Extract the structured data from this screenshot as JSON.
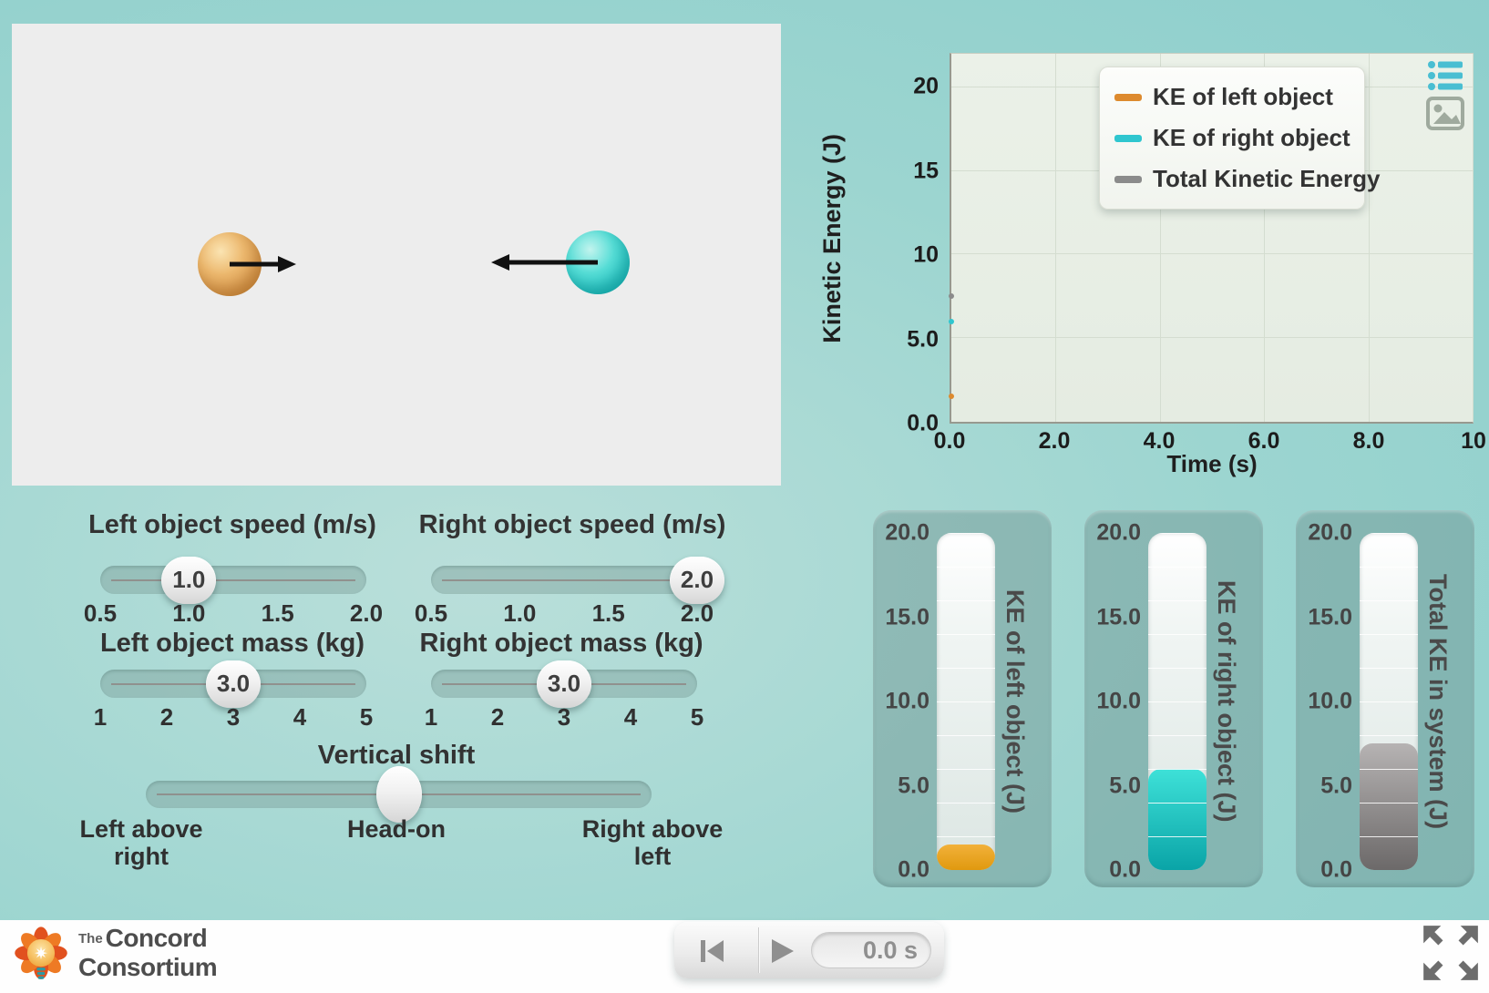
{
  "simulation": {
    "left_object": {
      "color": "#dfa055",
      "direction": "right"
    },
    "right_object": {
      "color": "#35cfcf",
      "direction": "left"
    }
  },
  "chart_data": {
    "type": "scatter",
    "title": "",
    "xlabel": "Time (s)",
    "ylabel": "Kinetic Energy (J)",
    "xlim": [
      0,
      10
    ],
    "ylim": [
      0,
      20
    ],
    "y_scale_max": 22,
    "grid": true,
    "legend_position": "top-right",
    "x_tick_values": [
      0,
      2,
      4,
      6,
      8,
      10
    ],
    "x_ticks": [
      "0.0",
      "2.0",
      "4.0",
      "6.0",
      "8.0",
      "10"
    ],
    "y_tick_values": [
      20,
      15,
      10,
      5,
      0
    ],
    "y_ticks": [
      "20",
      "15",
      "10",
      "5.0",
      "0.0"
    ],
    "x_gridlines": [
      2,
      4,
      6,
      8,
      10
    ],
    "y_gridlines": [
      5,
      10,
      15,
      20
    ],
    "series": [
      {
        "name": "KE of left object",
        "color": "#dd8a2e",
        "x": [
          0
        ],
        "values": [
          1.5
        ]
      },
      {
        "name": "KE of right object",
        "color": "#2fc6cf",
        "x": [
          0
        ],
        "values": [
          6.0
        ]
      },
      {
        "name": "Total Kinetic Energy",
        "color": "#8b8b8b",
        "x": [
          0
        ],
        "values": [
          7.5
        ]
      }
    ]
  },
  "chart_icons": {
    "list": "list-icon",
    "snapshot": "image-icon"
  },
  "sliders": [
    {
      "title": "Left object speed (m/s)",
      "min": 0.5,
      "max": 2.0,
      "value": 1.0,
      "display": "1.0",
      "ticks": [
        "0.5",
        "1.0",
        "1.5",
        "2.0"
      ]
    },
    {
      "title": "Right object speed (m/s)",
      "min": 0.5,
      "max": 2.0,
      "value": 2.0,
      "display": "2.0",
      "ticks": [
        "0.5",
        "1.0",
        "1.5",
        "2.0"
      ]
    },
    {
      "title": "Left object mass (kg)",
      "min": 1,
      "max": 5,
      "value": 3.0,
      "display": "3.0",
      "ticks": [
        "1",
        "2",
        "3",
        "4",
        "5"
      ]
    },
    {
      "title": "Right object mass (kg)",
      "min": 1,
      "max": 5,
      "value": 3.0,
      "display": "3.0",
      "ticks": [
        "1",
        "2",
        "3",
        "4",
        "5"
      ]
    }
  ],
  "vertical_shift": {
    "title": "Vertical shift",
    "min": -1,
    "max": 1,
    "value": 0,
    "display": "",
    "labels": [
      "Left above\nright",
      "Head-on",
      "Right above\nleft"
    ]
  },
  "gauges": [
    {
      "label": "KE of left object (J)",
      "min": 0,
      "max": 20,
      "value": 1.5,
      "fill_top": "#f2b13a",
      "fill_bottom": "#e0990f",
      "tick_values": [
        20,
        15,
        10,
        5,
        0
      ],
      "ticks": [
        "20.0",
        "15.0",
        "10.0",
        "5.0",
        "0.0"
      ]
    },
    {
      "label": "KE of right object (J)",
      "min": 0,
      "max": 20,
      "value": 6.0,
      "fill_top": "#3ee1d8",
      "fill_bottom": "#0aa4a7",
      "tick_values": [
        20,
        15,
        10,
        5,
        0
      ],
      "ticks": [
        "20.0",
        "15.0",
        "10.0",
        "5.0",
        "0.0"
      ]
    },
    {
      "label": "Total KE in system (J)",
      "min": 0,
      "max": 20,
      "value": 7.5,
      "fill_top": "#b6b3b3",
      "fill_bottom": "#6c6969",
      "tick_values": [
        20,
        15,
        10,
        5,
        0
      ],
      "ticks": [
        "20.0",
        "15.0",
        "10.0",
        "5.0",
        "0.0"
      ]
    }
  ],
  "footer": {
    "logo": {
      "prefix": "The",
      "line1": "Concord",
      "line2": "Consortium"
    },
    "controls": {
      "reset_icon": "skip-to-start-icon",
      "play_icon": "play-icon",
      "time_display": "0.0 s"
    },
    "fullscreen_icon": "fullscreen-arrows-icon"
  }
}
